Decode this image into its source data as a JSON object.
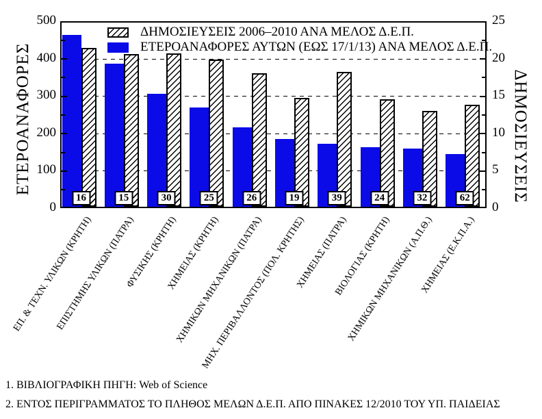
{
  "colors": {
    "bar_blue": "#0b0be8",
    "hatch_line": "#000000",
    "background": "#ffffff"
  },
  "chart_data": {
    "type": "bar",
    "title": "",
    "categories": [
      "ΕΠ. & ΤΕΧΝ. ΥΛΙΚΩΝ (ΚΡΗΤΗ)",
      "ΕΠΙΣΤΗΜΗΣ ΥΛΙΚΩΝ (ΠΑΤΡΑ)",
      "ΦΥΣΙΚΗΣ (ΚΡΗΤΗ)",
      "ΧΗΜΕΙΑΣ (ΚΡΗΤΗ)",
      "ΧΗΜΙΚΩΝ ΜΗΧΑΝΙΚΩΝ (ΠΑΤΡΑ)",
      "ΜΗΧ. ΠΕΡΙΒΑΛΛΟΝΤΟΣ (ΠΟΛ. ΚΡΗΤΗΣ)",
      "ΧΗΜΕΙΑΣ (ΠΑΤΡΑ)",
      "ΒΙΟΛΟΓΙΑΣ (ΚΡΗΤΗ)",
      "ΧΗΜΙΚΩΝ ΜΗΧΑΝΙΚΩΝ  (Α.Π.Θ.)",
      "ΧΗΜΕΙΑΣ (Ε.Κ.Π.Α.)"
    ],
    "series": [
      {
        "name": "ΔΗΜΟΣΙΕΥΣΕΙΣ 2006–2010 ΑΝΑ ΜΕΛΟΣ Δ.Ε.Π.",
        "style": "hatched",
        "axis": "right",
        "values": [
          21.2,
          20.4,
          20.5,
          19.7,
          17.9,
          14.6,
          18.0,
          14.4,
          12.8,
          13.6
        ]
      },
      {
        "name": "ΕΤΕΡΟΑΝΑΦΟΡΕΣ ΑΥΤΩΝ  (ΕΩΣ 17/1/13) ΑΝΑ ΜΕΛΟΣ Δ.Ε.Π.",
        "style": "solid-blue",
        "axis": "left",
        "values": [
          460,
          383,
          302,
          266,
          212,
          182,
          168,
          160,
          156,
          141
        ]
      }
    ],
    "dep_members": [
      16,
      15,
      30,
      25,
      26,
      19,
      39,
      24,
      32,
      62
    ],
    "left_axis": {
      "label": "ΕΤΕΡΟΑΝΑΦΟΡΕΣ",
      "min": 0,
      "max": 500,
      "ticks": [
        0,
        100,
        200,
        300,
        400,
        500
      ],
      "minor_step": 50
    },
    "right_axis": {
      "label": "ΔΗΜΟΣΙΕΥΣΕΙΣ",
      "min": 0,
      "max": 25,
      "ticks": [
        0,
        5,
        10,
        15,
        20,
        25
      ],
      "minor_step": 2.5
    },
    "grid": "dashed horizontal lines at left-axis 100,200,300,400",
    "legend_position": "top-inside",
    "footnotes": [
      "1.  ΒΙΒΛΙΟΓΡΑΦΙΚΗ ΠΗΓΗ: Web of Science",
      "2.  ΕΝΤΟΣ ΠΕΡΙΓΡΑΜΜΑΤΟΣ ΤΟ ΠΛΗΘΟΣ ΜΕΛΩΝ Δ.Ε.Π. ΑΠΟ  ΠΙΝΑΚΕΣ 12/2010 ΤΟΥ ΥΠ. ΠΑΙΔΕΙΑΣ"
    ]
  }
}
